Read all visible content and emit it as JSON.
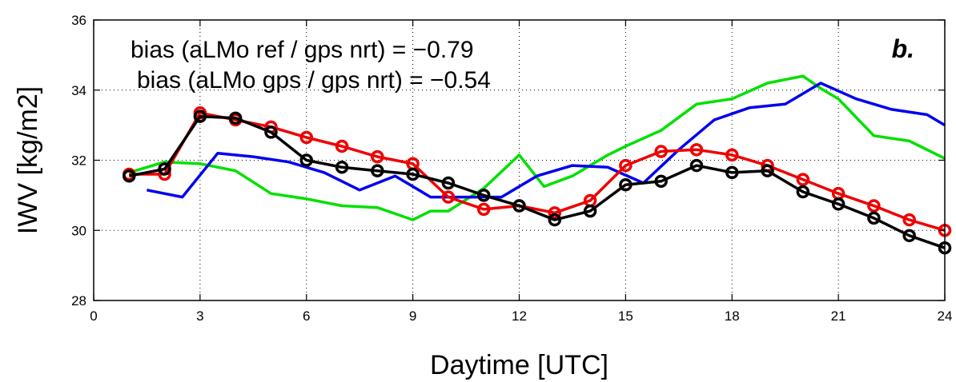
{
  "chart_data": {
    "type": "line",
    "xlabel": "Daytime [UTC]",
    "ylabel": "IWV [kg/m2]",
    "xlim": [
      0,
      24
    ],
    "ylim": [
      28,
      36
    ],
    "xticks": [
      0,
      3,
      6,
      9,
      12,
      15,
      18,
      21,
      24
    ],
    "yticks": [
      28,
      30,
      32,
      34,
      36
    ],
    "grid": true,
    "annotations": [
      "bias (aLMo ref / gps nrt) = −0.79",
      "bias (aLMo gps / gps nrt) = −0.54"
    ],
    "panel_label": "b.",
    "series": [
      {
        "color": "#00e000",
        "marker": "none",
        "x": [
          1,
          2,
          3,
          4,
          5,
          6,
          7,
          8,
          9,
          9.5,
          10,
          11,
          12,
          12.7,
          13.5,
          14.5,
          15,
          16,
          17,
          18,
          19,
          20,
          20.5,
          21,
          22,
          23,
          24
        ],
        "y": [
          31.65,
          31.95,
          31.9,
          31.7,
          31.05,
          30.9,
          30.7,
          30.65,
          30.3,
          30.55,
          30.55,
          31.2,
          32.15,
          31.25,
          31.55,
          32.15,
          32.4,
          32.85,
          33.6,
          33.75,
          34.2,
          34.4,
          34.05,
          33.75,
          32.7,
          32.55,
          32.05
        ]
      },
      {
        "color": "#0000ee",
        "marker": "none",
        "x": [
          1.5,
          2.5,
          3.5,
          4.5,
          5.5,
          6.5,
          7.5,
          8.5,
          9.5,
          10.5,
          11.5,
          12.5,
          13.5,
          14.5,
          15.5,
          16.5,
          17.5,
          18.5,
          19.5,
          20.5,
          21.5,
          22.5,
          23.5,
          24
        ],
        "y": [
          31.15,
          30.95,
          32.2,
          32.1,
          31.95,
          31.65,
          31.15,
          31.55,
          30.95,
          30.95,
          30.95,
          31.55,
          31.85,
          31.8,
          31.35,
          32.3,
          33.15,
          33.5,
          33.6,
          34.2,
          33.75,
          33.45,
          33.3,
          33.0
        ]
      },
      {
        "color": "#ee0000",
        "marker": "circle",
        "x": [
          1,
          2,
          3,
          4,
          5,
          6,
          7,
          8,
          9,
          10,
          11,
          12,
          13,
          14,
          15,
          16,
          17,
          18,
          19,
          20,
          21,
          22,
          23,
          24
        ],
        "y": [
          31.6,
          31.6,
          33.35,
          33.15,
          32.95,
          32.65,
          32.4,
          32.1,
          31.9,
          30.95,
          30.6,
          30.7,
          30.5,
          30.85,
          31.85,
          32.25,
          32.3,
          32.15,
          31.85,
          31.45,
          31.05,
          30.7,
          30.3,
          30.0
        ]
      },
      {
        "color": "#000000",
        "marker": "circle",
        "x": [
          1,
          2,
          3,
          4,
          5,
          6,
          7,
          8,
          9,
          10,
          11,
          12,
          13,
          14,
          15,
          16,
          17,
          18,
          19,
          20,
          21,
          22,
          23,
          24
        ],
        "y": [
          31.55,
          31.75,
          33.25,
          33.2,
          32.8,
          32.0,
          31.8,
          31.7,
          31.6,
          31.35,
          31.0,
          30.7,
          30.3,
          30.55,
          31.3,
          31.4,
          31.85,
          31.65,
          31.7,
          31.1,
          30.75,
          30.35,
          29.85,
          29.5
        ]
      }
    ]
  }
}
